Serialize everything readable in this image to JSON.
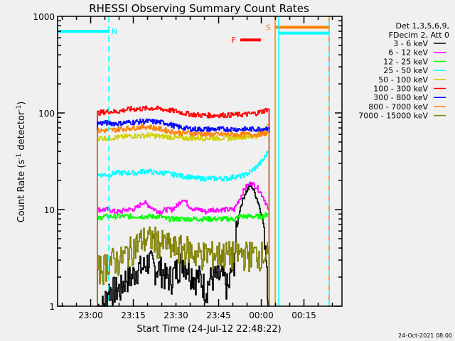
{
  "chart_data": {
    "type": "line",
    "title": "RHESSI Observing Summary Count Rates",
    "xlabel": "Start Time (24-Jul-12 22:48:22)",
    "ylabel_main": "Count Rate (s",
    "ylabel_sup1": "-1",
    "ylabel_mid": " detector",
    "ylabel_sup2": "-1",
    "ylabel_end": ")",
    "yscale": "log",
    "ylim": [
      1,
      1000
    ],
    "xlim_minutes": [
      0,
      100
    ],
    "x_unit": "minutes since 22:48:22",
    "yticks": [
      {
        "v": 1,
        "label": "1"
      },
      {
        "v": 10,
        "label": "10"
      },
      {
        "v": 100,
        "label": "100"
      },
      {
        "v": 1000,
        "label": "1000"
      }
    ],
    "xticks": [
      {
        "t": 11.633,
        "label": "23:00"
      },
      {
        "t": 26.633,
        "label": "23:15"
      },
      {
        "t": 41.633,
        "label": "23:30"
      },
      {
        "t": 56.633,
        "label": "23:45"
      },
      {
        "t": 71.633,
        "label": "00:00"
      },
      {
        "t": 86.633,
        "label": "00:15"
      }
    ],
    "legend_header": [
      "Det 1,3,5,6,9,",
      "FDecim 2, Att 0"
    ],
    "legend_placement": "right-outside",
    "x": [
      14,
      16,
      18,
      20,
      22,
      24,
      26,
      28,
      30,
      32,
      34,
      36,
      38,
      40,
      42,
      44,
      46,
      48,
      50,
      52,
      54,
      56,
      58,
      60,
      62,
      64,
      66,
      68,
      70,
      72,
      74
    ],
    "series": [
      {
        "name": "3 - 6 keV",
        "color": "#000000",
        "values": [
          1,
          1,
          1.5,
          1.5,
          1.5,
          2,
          2,
          2.5,
          2.5,
          3,
          2.5,
          2.5,
          2,
          2,
          2.5,
          3,
          2.5,
          2,
          2,
          1.5,
          2,
          2,
          2,
          1.5,
          3,
          10,
          15,
          18,
          13,
          8,
          1
        ]
      },
      {
        "name": "6 - 12 keV",
        "color": "#ff00ff",
        "values": [
          10,
          10,
          10,
          9.5,
          9.5,
          10,
          10,
          10.5,
          12,
          11,
          10,
          9.5,
          10,
          10,
          11,
          13,
          11,
          10,
          10,
          9.5,
          10,
          10,
          10,
          10,
          10,
          13,
          17,
          19,
          17,
          14,
          10
        ]
      },
      {
        "name": "12 - 25 keV",
        "color": "#00ff00",
        "values": [
          8,
          8.5,
          8.5,
          8.5,
          8.5,
          8.5,
          8.5,
          8.5,
          8.5,
          8.5,
          8.5,
          8.5,
          8,
          8,
          8,
          8,
          8,
          8,
          8,
          8,
          8,
          8,
          8,
          8,
          8,
          8.5,
          8.5,
          8.5,
          8.5,
          8.5,
          9
        ]
      },
      {
        "name": "25 - 50 keV",
        "color": "#00ffff",
        "values": [
          23,
          23,
          23,
          24,
          24,
          24,
          24,
          24,
          25,
          25,
          24,
          24,
          24,
          23,
          23,
          22,
          22,
          21,
          21,
          21,
          21,
          21,
          21,
          21,
          22,
          22,
          23,
          25,
          28,
          32,
          40
        ]
      },
      {
        "name": "50 - 100 keV",
        "color": "#d0d000",
        "values": [
          55,
          55,
          55,
          56,
          56,
          57,
          58,
          58,
          58,
          59,
          58,
          57,
          57,
          56,
          55,
          55,
          55,
          55,
          55,
          55,
          55,
          55,
          55,
          55,
          56,
          57,
          56,
          57,
          58,
          62,
          75
        ]
      },
      {
        "name": "100 - 300 keV",
        "color": "#ff0000",
        "values": [
          100,
          102,
          104,
          103,
          105,
          108,
          110,
          110,
          111,
          112,
          112,
          110,
          108,
          106,
          104,
          100,
          98,
          96,
          95,
          95,
          94,
          95,
          95,
          95,
          96,
          96,
          97,
          98,
          100,
          104,
          110
        ]
      },
      {
        "name": "300 - 800 keV",
        "color": "#0000ff",
        "values": [
          78,
          79,
          79,
          78,
          78,
          80,
          80,
          81,
          82,
          82,
          81,
          80,
          79,
          75,
          72,
          70,
          69,
          68,
          68,
          68,
          68,
          68,
          68,
          68,
          68,
          68,
          68,
          68,
          68,
          69,
          70
        ]
      },
      {
        "name": "800 - 7000 keV",
        "color": "#ff8000",
        "values": [
          65,
          66,
          66,
          67,
          68,
          69,
          70,
          71,
          72,
          72,
          70,
          68,
          66,
          64,
          63,
          62,
          62,
          61,
          61,
          60,
          60,
          60,
          60,
          60,
          60,
          60,
          60,
          60,
          60,
          61,
          62
        ]
      },
      {
        "name": "7000 - 15000 keV",
        "color": "#808000",
        "values": [
          2.5,
          2.5,
          3,
          3,
          3,
          3.5,
          4,
          4.5,
          5,
          5,
          5,
          4.5,
          4.5,
          4,
          4,
          4,
          4,
          3.5,
          3.5,
          3.5,
          3.5,
          3.5,
          3.5,
          3.5,
          3.5,
          3.5,
          3.5,
          3.5,
          3.5,
          3.5,
          3.5
        ]
      }
    ],
    "annotations": [
      {
        "label": "N",
        "color": "#00ffff",
        "t_start": 0,
        "t_end": 18,
        "level": 700,
        "marker_line_t": 18,
        "style": "dashed"
      },
      {
        "label": "F",
        "color": "#ff0000",
        "t_start": 64.25,
        "t_end": 71.5,
        "level": 570
      },
      {
        "label": "S",
        "color": "#ff8000",
        "t_start": 76.5,
        "t_end": 95.5,
        "level": 770,
        "marker_line_t": 76.5,
        "style": "solid"
      },
      {
        "label": "",
        "color": "#00ffff",
        "t_start": 77.75,
        "t_end": 95.5,
        "level": 670,
        "marker_line_t": 77.75,
        "style": "solid"
      }
    ],
    "end_marker_t": 95.5
  },
  "footer": "24-Oct-2021 08:00"
}
